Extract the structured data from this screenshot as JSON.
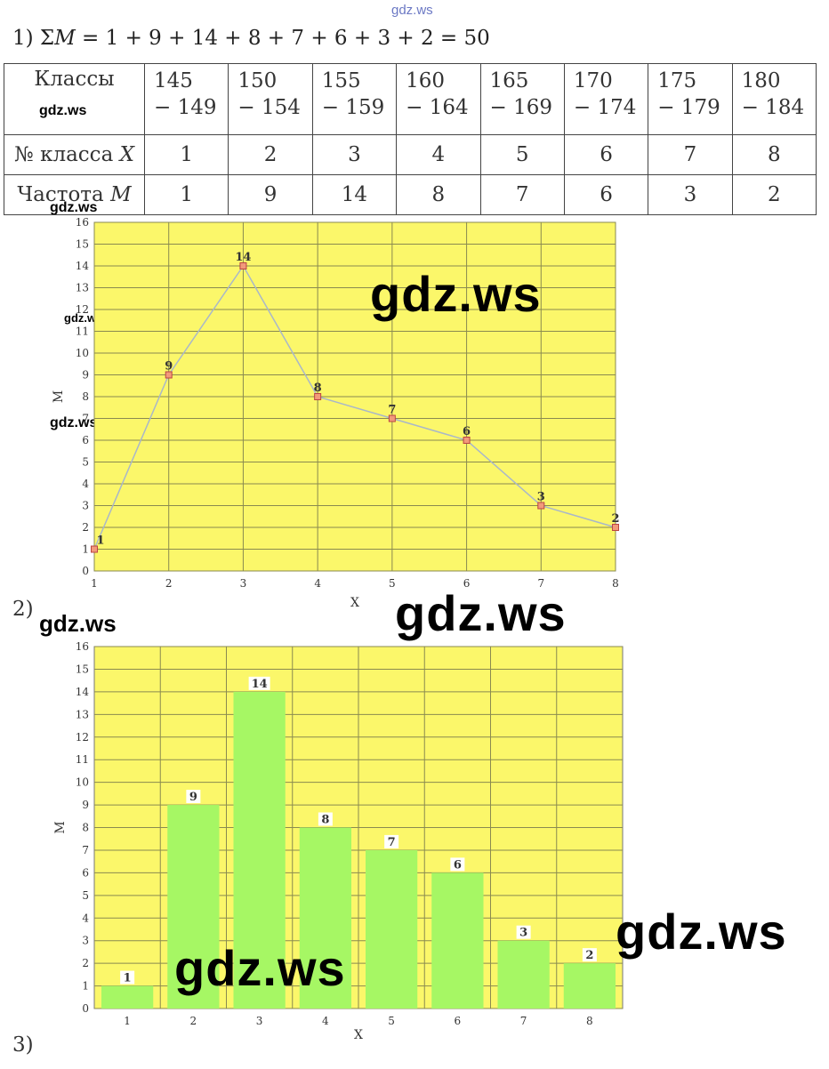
{
  "watermark": "gdz.ws",
  "formula": {
    "lead": "1) Σ",
    "var": "M",
    "rest": " = 1 + 9 + 14 + 8 + 7 + 6 + 3 + 2 = 50"
  },
  "table": {
    "row1_label": "Классы",
    "row2_label_text": "№ класса ",
    "row2_label_var": "X",
    "row3_label_text": "Частота ",
    "row3_label_var": "M",
    "classes": [
      [
        "145",
        "− 149"
      ],
      [
        "150",
        "− 154"
      ],
      [
        "155",
        "− 159"
      ],
      [
        "160",
        "− 164"
      ],
      [
        "165",
        "− 169"
      ],
      [
        "170",
        "− 174"
      ],
      [
        "175",
        "− 179"
      ],
      [
        "180",
        "− 184"
      ]
    ],
    "class_numbers": [
      "1",
      "2",
      "3",
      "4",
      "5",
      "6",
      "7",
      "8"
    ],
    "frequencies": [
      "1",
      "9",
      "14",
      "8",
      "7",
      "6",
      "3",
      "2"
    ]
  },
  "section_labels": [
    "2)",
    "3)"
  ],
  "chart_data": [
    {
      "type": "line",
      "x": [
        1,
        2,
        3,
        4,
        5,
        6,
        7,
        8
      ],
      "values": [
        1,
        9,
        14,
        8,
        7,
        6,
        3,
        2
      ],
      "data_labels": [
        "1",
        "9",
        "14",
        "8",
        "7",
        "6",
        "3",
        "2"
      ],
      "xlabel": "X",
      "ylabel": "M",
      "xlim": [
        1,
        8
      ],
      "ylim": [
        0,
        16
      ],
      "y_ticks": [
        "0",
        "1",
        "2",
        "3",
        "4",
        "5",
        "6",
        "7",
        "8",
        "9",
        "10",
        "11",
        "12",
        "13",
        "14",
        "15",
        "16"
      ],
      "x_ticks": [
        "1",
        "2",
        "3",
        "4",
        "5",
        "6",
        "7",
        "8"
      ],
      "grid": true,
      "colors": {
        "background": "#fbf76a",
        "line": "#a9b7c9",
        "marker": "#f29a7a"
      }
    },
    {
      "type": "bar",
      "categories": [
        "1",
        "2",
        "3",
        "4",
        "5",
        "6",
        "7",
        "8"
      ],
      "values": [
        1,
        9,
        14,
        8,
        7,
        6,
        3,
        2
      ],
      "data_labels": [
        "1",
        "9",
        "14",
        "8",
        "7",
        "6",
        "3",
        "2"
      ],
      "xlabel": "X",
      "ylabel": "M",
      "ylim": [
        0,
        16
      ],
      "y_ticks": [
        "0",
        "1",
        "2",
        "3",
        "4",
        "5",
        "6",
        "7",
        "8",
        "9",
        "10",
        "11",
        "12",
        "13",
        "14",
        "15",
        "16"
      ],
      "grid": true,
      "colors": {
        "background": "#fbf76a",
        "bar": "#a6f764"
      }
    }
  ]
}
